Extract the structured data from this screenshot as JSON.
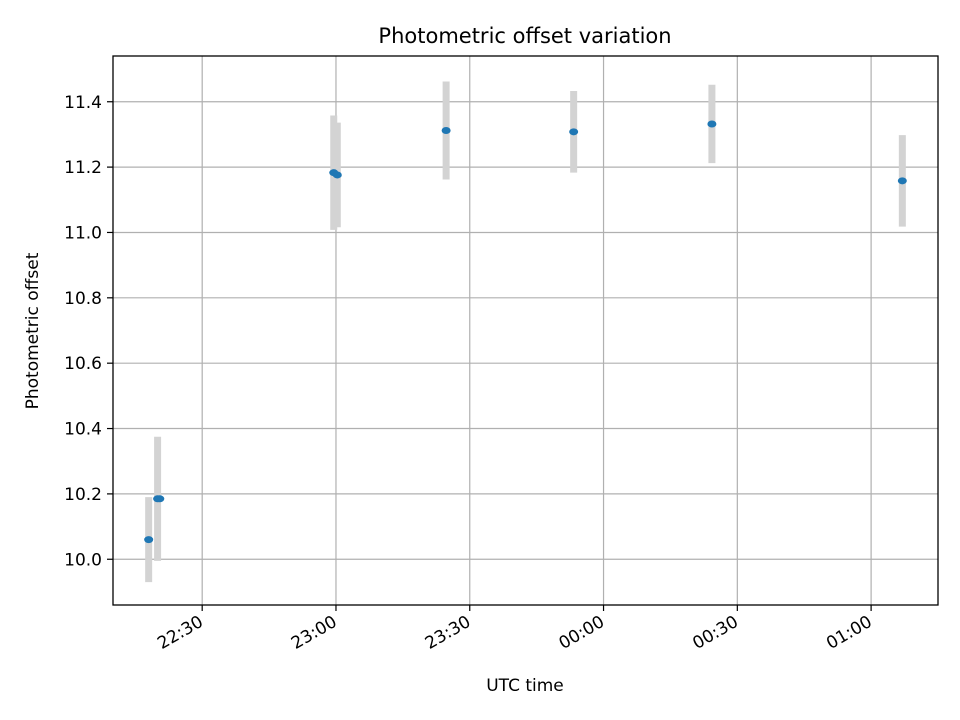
{
  "chart_data": {
    "type": "scatter",
    "title": "Photometric offset variation",
    "xlabel": "UTC time",
    "ylabel": "Photometric offset",
    "grid": true,
    "legend": "none",
    "x_axis_type": "time",
    "xlim": [
      "22:10",
      "01:15"
    ],
    "ylim": [
      9.86,
      11.54
    ],
    "xticks": [
      "22:30",
      "23:00",
      "23:30",
      "00:00",
      "00:30",
      "01:00"
    ],
    "yticks": [
      10.0,
      10.2,
      10.4,
      10.6,
      10.8,
      11.0,
      11.2,
      11.4
    ],
    "yticklabels": [
      "10.0",
      "10.2",
      "10.4",
      "10.6",
      "10.8",
      "11.0",
      "11.2",
      "11.4"
    ],
    "series": [
      {
        "color": "#1f77b4",
        "errorbar_color": "#d3d3d3",
        "points": [
          {
            "x": "22:18",
            "y": 10.06,
            "yerr": 0.13
          },
          {
            "x": "22:20",
            "y": 10.185,
            "yerr": 0.19
          },
          {
            "x": "22:20.5",
            "y": 10.185,
            "yerr": 0.0
          },
          {
            "x": "22:59.5",
            "y": 11.183,
            "yerr": 0.175
          },
          {
            "x": "23:00.3",
            "y": 11.176,
            "yerr": 0.16
          },
          {
            "x": "23:24.7",
            "y": 11.312,
            "yerr": 0.15
          },
          {
            "x": "23:53.3",
            "y": 11.308,
            "yerr": 0.125
          },
          {
            "x": "00:24.3",
            "y": 11.332,
            "yerr": 0.12
          },
          {
            "x": "01:07",
            "y": 11.158,
            "yerr": 0.14
          }
        ]
      }
    ]
  }
}
